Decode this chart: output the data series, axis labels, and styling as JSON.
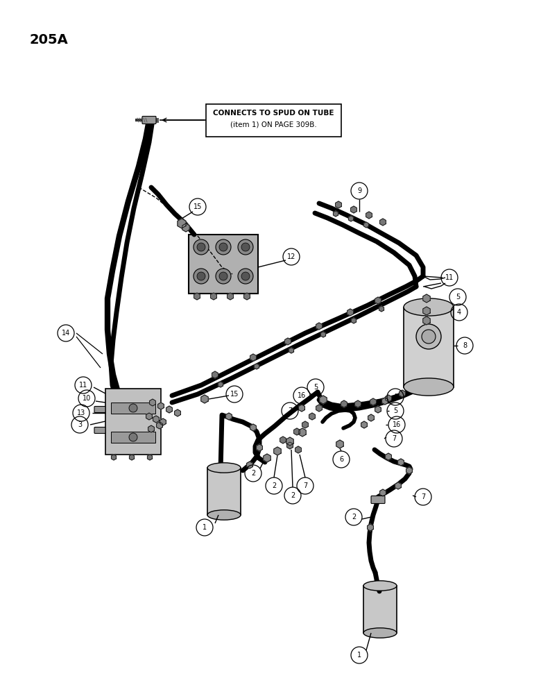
{
  "page_label": "205A",
  "bg": "#ffffff",
  "lc": "#000000",
  "callout_text_line1": "CONNECTS TO SPUD ON TUBE",
  "callout_text_line2": "(item 1) ON PAGE 309B.",
  "fig_w": 7.8,
  "fig_h": 10.0,
  "dpi": 100
}
